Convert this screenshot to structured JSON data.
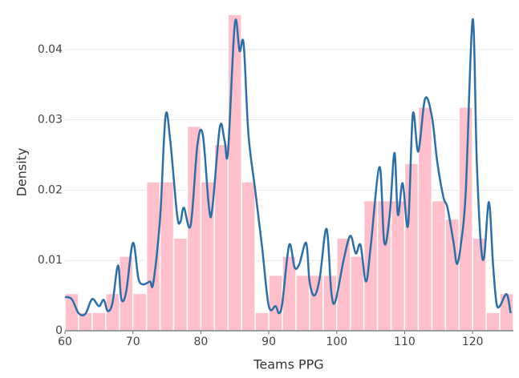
{
  "chart_data": {
    "type": "histogram",
    "x_label": "Teams PPG",
    "y_label": "Density",
    "bins": [
      60,
      62,
      64,
      66,
      68,
      70,
      72,
      74,
      76,
      78,
      80,
      82,
      84,
      86,
      88,
      90,
      92,
      94,
      96,
      98,
      100,
      102,
      104,
      106,
      108,
      110,
      112,
      114,
      116,
      118,
      120,
      122,
      124,
      126
    ],
    "values": [
      0.0053,
      0.0026,
      0.0026,
      0.0053,
      0.0106,
      0.0053,
      0.0212,
      0.0212,
      0.0132,
      0.0291,
      0.0212,
      0.0265,
      0.045,
      0.0212,
      0.0026,
      0.0079,
      0.0106,
      0.0079,
      0.0079,
      0.0079,
      0.0132,
      0.0106,
      0.0185,
      0.0185,
      0.0185,
      0.0238,
      0.0318,
      0.0185,
      0.0159,
      0.0318,
      0.0132,
      0.0026,
      0.0053
    ],
    "color": "#ffc0cb",
    "kde": {
      "color": "#2a6fa8",
      "x": [
        60,
        61,
        62,
        63,
        64,
        65,
        65.7,
        66.3,
        67,
        67.8,
        68.3,
        69,
        70,
        70.8,
        71.5,
        72.5,
        73,
        74,
        74.8,
        75.5,
        76.5,
        77,
        77.5,
        78.5,
        79.5,
        80.3,
        81.2,
        81.7,
        82.8,
        83.5,
        84,
        85,
        85.7,
        86.3,
        87,
        88,
        89,
        90,
        91,
        91.5,
        92,
        93,
        93.8,
        94.5,
        95.5,
        96,
        96.7,
        97.5,
        98.5,
        99.2,
        99.8,
        101,
        102,
        102.8,
        103.5,
        104.3,
        105,
        106.3,
        107,
        107.8,
        108.5,
        109,
        109.7,
        110.5,
        111.2,
        112,
        113,
        114,
        114.8,
        115.7,
        116.3,
        117.2,
        117.7,
        118.3,
        119,
        120,
        120.6,
        121.2,
        121.7,
        122.4,
        123,
        123.5,
        124,
        125,
        125.6
      ],
      "values": [
        0.0048,
        0.0045,
        0.0025,
        0.0024,
        0.0045,
        0.0035,
        0.0044,
        0.0028,
        0.004,
        0.0093,
        0.0045,
        0.0055,
        0.0125,
        0.0075,
        0.0066,
        0.007,
        0.0068,
        0.016,
        0.0305,
        0.027,
        0.0165,
        0.0155,
        0.0175,
        0.015,
        0.0265,
        0.0278,
        0.0175,
        0.0175,
        0.029,
        0.027,
        0.0255,
        0.0437,
        0.0398,
        0.0408,
        0.028,
        0.02,
        0.012,
        0.0035,
        0.0035,
        0.0025,
        0.004,
        0.0122,
        0.009,
        0.0095,
        0.0125,
        0.007,
        0.005,
        0.0075,
        0.0145,
        0.0055,
        0.0042,
        0.01,
        0.0135,
        0.011,
        0.0122,
        0.007,
        0.012,
        0.0233,
        0.0125,
        0.0165,
        0.0253,
        0.0165,
        0.021,
        0.015,
        0.0308,
        0.0255,
        0.033,
        0.0305,
        0.024,
        0.019,
        0.0175,
        0.0125,
        0.0095,
        0.0125,
        0.02,
        0.0443,
        0.0245,
        0.0125,
        0.0105,
        0.0183,
        0.0095,
        0.004,
        0.0035,
        0.0052,
        0.0025
      ]
    },
    "xlim": [
      60,
      126
    ],
    "ylim": [
      0,
      0.045
    ],
    "xticks": [
      60,
      70,
      80,
      90,
      100,
      110,
      120
    ],
    "yticks": [
      0,
      0.01,
      0.02,
      0.03,
      0.04
    ],
    "grid": true
  }
}
